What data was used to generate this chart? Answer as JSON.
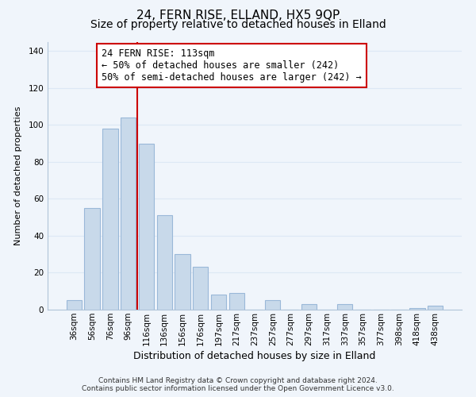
{
  "title": "24, FERN RISE, ELLAND, HX5 9QP",
  "subtitle": "Size of property relative to detached houses in Elland",
  "xlabel": "Distribution of detached houses by size in Elland",
  "ylabel": "Number of detached properties",
  "categories": [
    "36sqm",
    "56sqm",
    "76sqm",
    "96sqm",
    "116sqm",
    "136sqm",
    "156sqm",
    "176sqm",
    "197sqm",
    "217sqm",
    "237sqm",
    "257sqm",
    "277sqm",
    "297sqm",
    "317sqm",
    "337sqm",
    "357sqm",
    "377sqm",
    "398sqm",
    "418sqm",
    "438sqm"
  ],
  "values": [
    5,
    55,
    98,
    104,
    90,
    51,
    30,
    23,
    8,
    9,
    0,
    5,
    0,
    3,
    0,
    3,
    0,
    0,
    0,
    1,
    2
  ],
  "bar_color": "#c8d9ea",
  "bar_edge_color": "#9ab8d8",
  "highlight_line_index": 3.5,
  "highlight_line_color": "#cc0000",
  "annotation_line1": "24 FERN RISE: 113sqm",
  "annotation_line2": "← 50% of detached houses are smaller (242)",
  "annotation_line3": "50% of semi-detached houses are larger (242) →",
  "annotation_box_color": "#ffffff",
  "annotation_box_edge_color": "#cc0000",
  "ylim": [
    0,
    145
  ],
  "yticks": [
    0,
    20,
    40,
    60,
    80,
    100,
    120,
    140
  ],
  "footer_line1": "Contains HM Land Registry data © Crown copyright and database right 2024.",
  "footer_line2": "Contains public sector information licensed under the Open Government Licence v3.0.",
  "background_color": "#f0f5fb",
  "grid_color": "#dde8f5",
  "title_fontsize": 11,
  "subtitle_fontsize": 10,
  "xlabel_fontsize": 9,
  "ylabel_fontsize": 8,
  "tick_fontsize": 7.5,
  "annotation_fontsize": 8.5,
  "footer_fontsize": 6.5
}
